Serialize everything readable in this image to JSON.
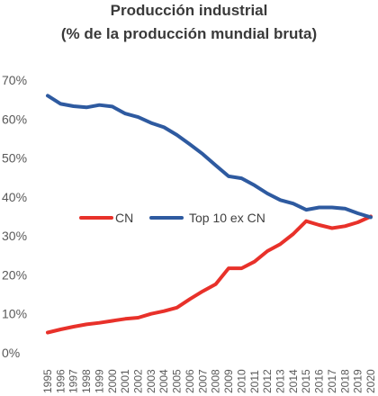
{
  "chart_data": {
    "type": "line",
    "title": "Producción industrial",
    "subtitle": "(% de la producción mundial bruta)",
    "x": [
      "1995",
      "1996",
      "1997",
      "1998",
      "1999",
      "2000",
      "2001",
      "2002",
      "2003",
      "2004",
      "2005",
      "2006",
      "2007",
      "2008",
      "2009",
      "2010",
      "2011",
      "2012",
      "2013",
      "2014",
      "2015",
      "2016",
      "2017",
      "2018",
      "2019",
      "2020"
    ],
    "ylim": [
      0,
      70
    ],
    "yticks": [
      "0%",
      "10%",
      "20%",
      "30%",
      "40%",
      "50%",
      "60%",
      "70%"
    ],
    "series": [
      {
        "name": "CN",
        "color": "#e8312a",
        "values": [
          5.2,
          6.0,
          6.7,
          7.3,
          7.7,
          8.2,
          8.7,
          9.0,
          10.0,
          10.7,
          11.6,
          13.8,
          15.8,
          17.6,
          21.7,
          21.7,
          23.4,
          26.1,
          27.9,
          30.5,
          33.8,
          32.8,
          32.0,
          32.5,
          33.5,
          35.0
        ]
      },
      {
        "name": "Top  10 ex CN",
        "color": "#2e5aa0",
        "values": [
          66.0,
          63.9,
          63.3,
          63.0,
          63.6,
          63.2,
          61.4,
          60.5,
          59.0,
          57.9,
          55.9,
          53.5,
          51.0,
          48.1,
          45.3,
          44.8,
          43.0,
          40.9,
          39.2,
          38.3,
          36.7,
          37.3,
          37.3,
          37.0,
          35.8,
          34.8
        ]
      }
    ],
    "legend": "inside, center"
  }
}
